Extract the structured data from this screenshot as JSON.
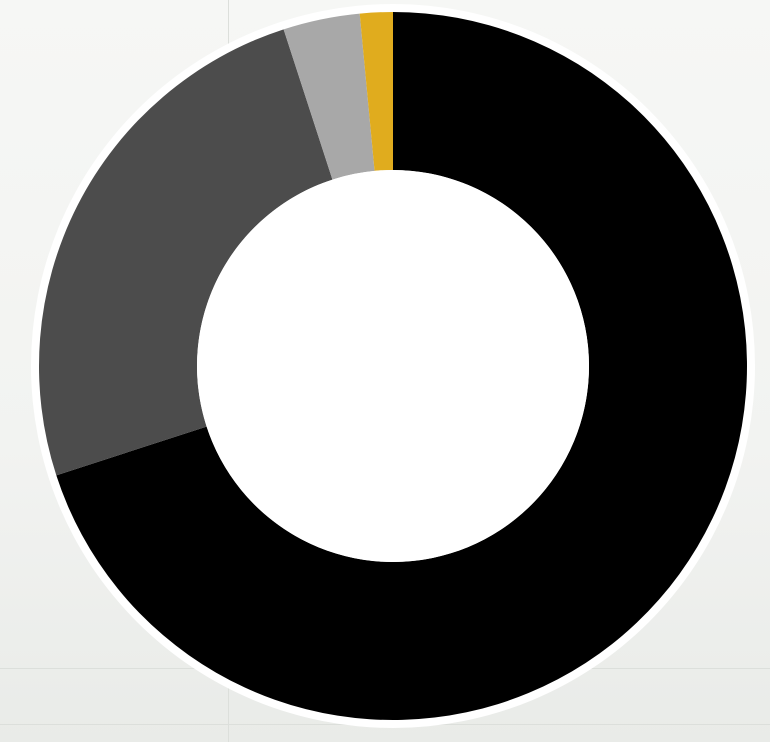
{
  "chart_data": {
    "type": "pie",
    "variant": "donut",
    "title": "",
    "legend": "none",
    "slices": [
      {
        "value": 70.0,
        "color": "#000000"
      },
      {
        "value": 25.0,
        "color": "#4c4c4c"
      },
      {
        "value": 3.5,
        "color": "#a8a8a8"
      },
      {
        "value": 1.5,
        "color": "#e0ac1e"
      }
    ],
    "start_angle": "12 o'clock",
    "direction": "clockwise",
    "background_color": "#f2f3f1",
    "ring_outline_color": "#ffffff",
    "hole_color": "#ffffff"
  }
}
